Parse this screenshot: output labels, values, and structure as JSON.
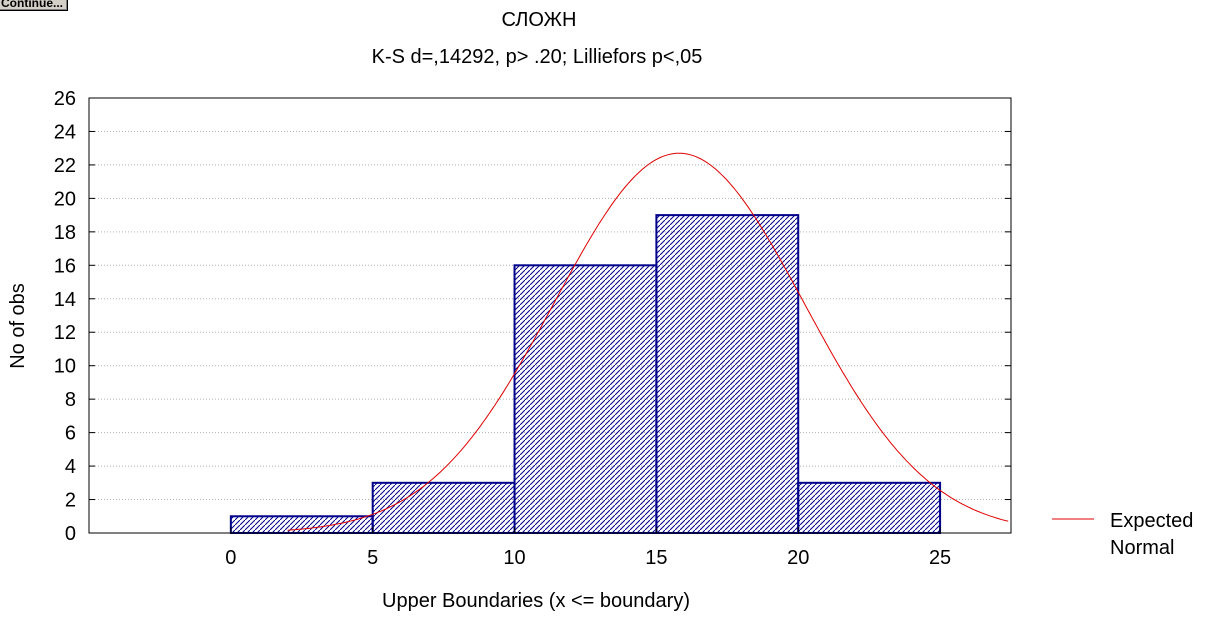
{
  "toolbar": {
    "continue_label": "Continue..."
  },
  "chart_data": {
    "type": "bar",
    "title": "СЛОЖН",
    "subtitle": "K-S d=,14292, p> .20; Lilliefors p<,05",
    "xlabel": "Upper Boundaries (x <= boundary)",
    "ylabel": "No of obs",
    "xlim": [
      -5,
      27.5
    ],
    "ylim": [
      0,
      26
    ],
    "xticks": [
      0,
      5,
      10,
      15,
      20,
      25
    ],
    "yticks": [
      0,
      2,
      4,
      6,
      8,
      10,
      12,
      14,
      16,
      18,
      20,
      22,
      24,
      26
    ],
    "bins": [
      {
        "x0": 0,
        "x1": 5,
        "count": 1
      },
      {
        "x0": 5,
        "x1": 10,
        "count": 3
      },
      {
        "x0": 10,
        "x1": 15,
        "count": 16
      },
      {
        "x0": 15,
        "x1": 20,
        "count": 19
      },
      {
        "x0": 20,
        "x1": 25,
        "count": 3
      }
    ],
    "expected_normal": {
      "name": "Expected Normal",
      "peak_x": 15.8,
      "peak_y": 22.7,
      "sd": 4.4
    },
    "grid": true,
    "legend": {
      "position": "right",
      "lines": [
        "Expected",
        "Normal"
      ]
    },
    "colors": {
      "bar_stroke": "#00008b",
      "bar_hatch": "#00008b",
      "curve": "#e00000",
      "grid": "#b0b0b0"
    }
  }
}
